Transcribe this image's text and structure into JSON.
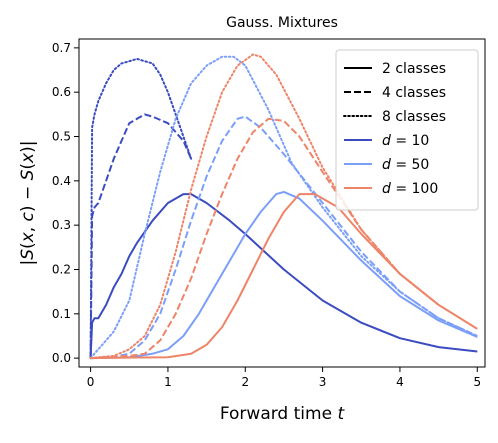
{
  "chart_data": {
    "type": "line",
    "title": "Gauss. Mixtures",
    "xlabel": "Forward time t",
    "ylabel": "|S(x, c) − S(x)|",
    "xlim": [
      -0.15,
      5.1
    ],
    "ylim": [
      -0.02,
      0.72
    ],
    "xticks": [
      "0",
      "1",
      "2",
      "3",
      "4",
      "5"
    ],
    "yticks": [
      "0.0",
      "0.1",
      "0.2",
      "0.3",
      "0.4",
      "0.5",
      "0.6",
      "0.7"
    ],
    "grid": false,
    "legend_position": "top-right",
    "legend": [
      {
        "label": "2 classes",
        "kind": "linestyle",
        "style": "solid"
      },
      {
        "label": "4 classes",
        "kind": "linestyle",
        "style": "dashed"
      },
      {
        "label": "8 classes",
        "kind": "linestyle",
        "style": "dotted"
      },
      {
        "label": "d = 10",
        "kind": "color",
        "color": "#3b4cc0"
      },
      {
        "label": "d = 50",
        "kind": "color",
        "color": "#7b9ff9"
      },
      {
        "label": "d = 100",
        "kind": "color",
        "color": "#ee8468"
      }
    ],
    "series": [
      {
        "d": "10",
        "classes": "2",
        "color": "#3b4cc0",
        "style": "solid",
        "x": [
          0,
          0.02,
          0.05,
          0.1,
          0.2,
          0.3,
          0.4,
          0.5,
          0.6,
          0.8,
          1.0,
          1.2,
          1.3,
          1.5,
          1.8,
          2.0,
          2.5,
          3.0,
          3.5,
          4.0,
          4.5,
          5.0
        ],
        "y": [
          0.0,
          0.08,
          0.09,
          0.09,
          0.12,
          0.16,
          0.19,
          0.23,
          0.26,
          0.31,
          0.35,
          0.37,
          0.37,
          0.35,
          0.31,
          0.28,
          0.2,
          0.13,
          0.08,
          0.045,
          0.025,
          0.015
        ]
      },
      {
        "d": "10",
        "classes": "4",
        "color": "#3b4cc0",
        "style": "dashed",
        "x": [
          0,
          0.02,
          0.05,
          0.1,
          0.2,
          0.3,
          0.4,
          0.5,
          0.6,
          0.7,
          0.8,
          1.0,
          1.2,
          1.3
        ],
        "y": [
          0.0,
          0.32,
          0.34,
          0.35,
          0.4,
          0.45,
          0.49,
          0.53,
          0.54,
          0.55,
          0.545,
          0.53,
          0.49,
          0.45
        ]
      },
      {
        "d": "10",
        "classes": "8",
        "color": "#3b4cc0",
        "style": "dotted",
        "x": [
          0,
          0.02,
          0.05,
          0.1,
          0.2,
          0.3,
          0.4,
          0.5,
          0.6,
          0.7,
          0.8,
          0.9,
          1.0,
          1.1,
          1.2,
          1.3
        ],
        "y": [
          0.0,
          0.52,
          0.55,
          0.58,
          0.62,
          0.65,
          0.665,
          0.67,
          0.675,
          0.67,
          0.665,
          0.64,
          0.6,
          0.55,
          0.5,
          0.45
        ]
      },
      {
        "d": "50",
        "classes": "2",
        "color": "#7b9ff9",
        "style": "solid",
        "x": [
          0,
          0.5,
          0.8,
          1.0,
          1.2,
          1.4,
          1.6,
          1.8,
          2.0,
          2.2,
          2.4,
          2.5,
          2.7,
          3.0,
          3.5,
          4.0,
          4.5,
          5.0
        ],
        "y": [
          0.0,
          0.002,
          0.01,
          0.02,
          0.05,
          0.1,
          0.16,
          0.22,
          0.28,
          0.33,
          0.37,
          0.375,
          0.36,
          0.31,
          0.22,
          0.14,
          0.085,
          0.048
        ]
      },
      {
        "d": "50",
        "classes": "4",
        "color": "#7b9ff9",
        "style": "dashed",
        "x": [
          0,
          0.3,
          0.5,
          0.7,
          0.9,
          1.1,
          1.3,
          1.5,
          1.7,
          1.9,
          2.0,
          2.2,
          2.5,
          3.0,
          3.5,
          4.0,
          4.5,
          5.0
        ],
        "y": [
          0.0,
          0.003,
          0.01,
          0.04,
          0.1,
          0.2,
          0.31,
          0.41,
          0.49,
          0.54,
          0.545,
          0.52,
          0.46,
          0.35,
          0.24,
          0.15,
          0.09,
          0.05
        ]
      },
      {
        "d": "50",
        "classes": "8",
        "color": "#7b9ff9",
        "style": "dotted",
        "x": [
          0,
          0.1,
          0.2,
          0.3,
          0.5,
          0.7,
          0.9,
          1.1,
          1.3,
          1.5,
          1.7,
          1.85,
          2.0,
          2.3,
          2.6,
          3.0,
          3.5,
          4.0,
          4.5,
          5.0
        ],
        "y": [
          0.0,
          0.02,
          0.04,
          0.06,
          0.13,
          0.28,
          0.42,
          0.54,
          0.62,
          0.66,
          0.68,
          0.68,
          0.66,
          0.56,
          0.44,
          0.34,
          0.23,
          0.15,
          0.09,
          0.05
        ]
      },
      {
        "d": "100",
        "classes": "2",
        "color": "#ee8468",
        "style": "solid",
        "x": [
          0,
          1.0,
          1.3,
          1.5,
          1.7,
          1.9,
          2.1,
          2.3,
          2.5,
          2.7,
          2.9,
          3.2,
          3.5,
          4.0,
          4.5,
          5.0
        ],
        "y": [
          0.0,
          0.002,
          0.01,
          0.03,
          0.07,
          0.13,
          0.2,
          0.27,
          0.33,
          0.37,
          0.37,
          0.34,
          0.28,
          0.19,
          0.12,
          0.066
        ]
      },
      {
        "d": "100",
        "classes": "4",
        "color": "#ee8468",
        "style": "dashed",
        "x": [
          0,
          0.5,
          0.7,
          0.9,
          1.1,
          1.3,
          1.5,
          1.7,
          1.9,
          2.1,
          2.3,
          2.5,
          2.7,
          3.0,
          3.5,
          4.0,
          4.5
        ],
        "y": [
          0.0,
          0.005,
          0.01,
          0.04,
          0.1,
          0.18,
          0.28,
          0.37,
          0.45,
          0.51,
          0.54,
          0.535,
          0.5,
          0.42,
          0.29,
          0.19,
          0.12
        ]
      },
      {
        "d": "100",
        "classes": "8",
        "color": "#ee8468",
        "style": "dotted",
        "x": [
          0,
          0.3,
          0.5,
          0.7,
          0.9,
          1.1,
          1.3,
          1.5,
          1.7,
          1.9,
          2.1,
          2.2,
          2.4,
          2.7,
          3.0,
          3.5,
          4.0,
          4.5
        ],
        "y": [
          0.0,
          0.005,
          0.02,
          0.05,
          0.12,
          0.24,
          0.38,
          0.5,
          0.6,
          0.66,
          0.685,
          0.68,
          0.64,
          0.54,
          0.43,
          0.29,
          0.19,
          0.12
        ]
      }
    ]
  }
}
